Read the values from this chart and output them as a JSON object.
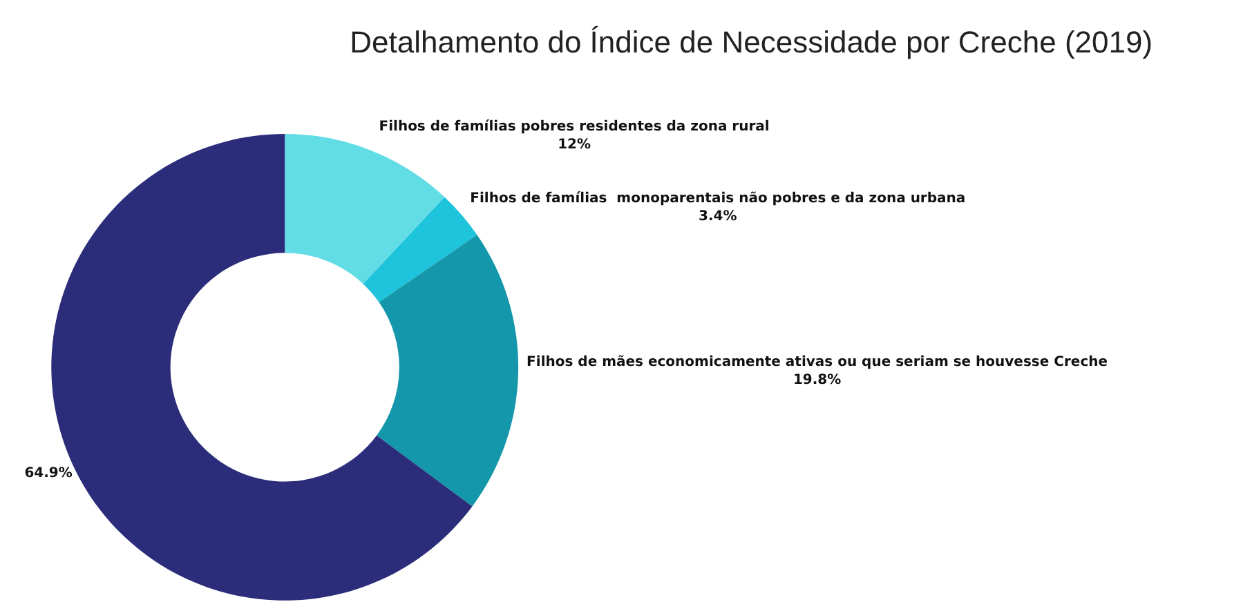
{
  "chart_data": {
    "type": "donut",
    "title": "Detalhamento do Índice de Necessidade por Creche (2019)",
    "categories": [
      "Filhos de famílias pobres residentes da zona rural",
      "Filhos de famílias  monoparentais não pobres e da zona urbana",
      "Filhos de mães economicamente ativas ou que seriam se houvesse Creche",
      null
    ],
    "values": [
      12,
      3.4,
      19.8,
      64.9
    ],
    "value_labels": [
      "12%",
      "3.4%",
      "19.8%",
      "64.9%"
    ],
    "colors": [
      "#62dde6",
      "#1ec3dc",
      "#1497aa",
      "#2b2d7a"
    ],
    "legend": false
  }
}
